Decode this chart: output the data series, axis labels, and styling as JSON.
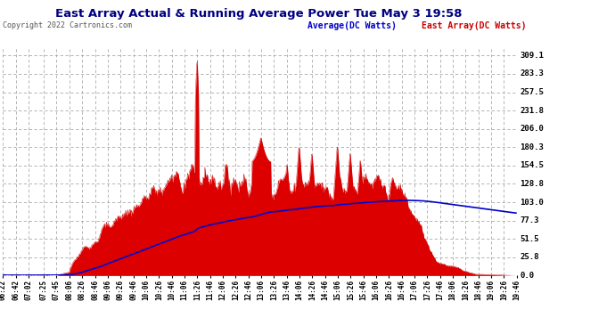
{
  "title": "East Array Actual & Running Average Power Tue May 3 19:58",
  "copyright": "Copyright 2022 Cartronics.com",
  "legend_avg": "Average(DC Watts)",
  "legend_east": "East Array(DC Watts)",
  "bg_color": "#ffffff",
  "plot_bg_color": "#ffffff",
  "grid_color": "#aaaaaa",
  "fill_color": "#dd0000",
  "avg_line_color": "#0000cc",
  "east_line_color": "#cc0000",
  "yticks": [
    0.0,
    25.8,
    51.5,
    77.3,
    103.0,
    128.8,
    154.5,
    180.3,
    206.0,
    231.8,
    257.5,
    283.3,
    309.1
  ],
  "ymax": 319,
  "x_tick_labels": [
    "06:22",
    "06:42",
    "07:02",
    "07:25",
    "07:45",
    "08:06",
    "08:26",
    "08:46",
    "09:06",
    "09:26",
    "09:46",
    "10:06",
    "10:26",
    "10:46",
    "11:06",
    "11:26",
    "11:46",
    "12:06",
    "12:26",
    "12:46",
    "13:06",
    "13:26",
    "13:46",
    "14:06",
    "14:26",
    "14:46",
    "15:06",
    "15:26",
    "15:46",
    "16:06",
    "16:26",
    "16:46",
    "17:06",
    "17:26",
    "17:46",
    "18:06",
    "18:26",
    "18:46",
    "19:06",
    "19:26",
    "19:46"
  ],
  "title_color": "#000080",
  "copyright_color": "#555555",
  "title_fontsize": 9.5,
  "copyright_fontsize": 6,
  "legend_fontsize": 7,
  "tick_fontsize": 5.5,
  "ytick_fontsize": 6.5
}
